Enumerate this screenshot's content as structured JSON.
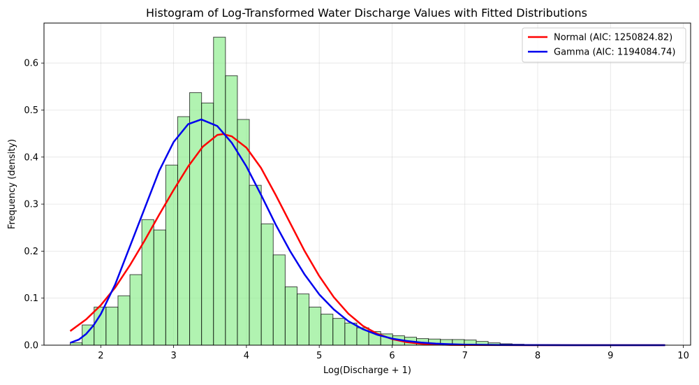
{
  "chart_data": {
    "type": "bar",
    "title": "Histogram of Log-Transformed Water Discharge Values with Fitted Distributions",
    "xlabel": "Log(Discharge + 1)",
    "ylabel": "Frequency (density)",
    "xlim": [
      1.22,
      10.1
    ],
    "ylim": [
      0,
      0.685
    ],
    "xticks": [
      "2",
      "3",
      "4",
      "5",
      "6",
      "7",
      "8",
      "9",
      "10"
    ],
    "yticks": [
      "0.0",
      "0.1",
      "0.2",
      "0.3",
      "0.4",
      "0.5",
      "0.6"
    ],
    "grid": true,
    "legend_position": "top-right",
    "histogram": {
      "bin_start": 1.58,
      "bin_width": 0.164,
      "color": "#90ee90",
      "edge_color": "#000000",
      "values": [
        0.005,
        0.043,
        0.081,
        0.081,
        0.105,
        0.15,
        0.267,
        0.245,
        0.383,
        0.486,
        0.537,
        0.515,
        0.655,
        0.573,
        0.48,
        0.34,
        0.258,
        0.192,
        0.124,
        0.109,
        0.081,
        0.066,
        0.057,
        0.047,
        0.037,
        0.029,
        0.024,
        0.02,
        0.017,
        0.014,
        0.013,
        0.012,
        0.012,
        0.011,
        0.008,
        0.005,
        0.003,
        0.002,
        0.001,
        0.001,
        0.001,
        0.0005,
        0.0005,
        0.0005,
        0.0005,
        0.0003,
        0.0003,
        0.0002,
        0.0002,
        0.0001
      ]
    },
    "series": [
      {
        "name": "Normal (AIC: 1250824.82)",
        "color": "#ff0000",
        "x": [
          1.58,
          1.8,
          2.0,
          2.2,
          2.4,
          2.6,
          2.8,
          3.0,
          3.2,
          3.4,
          3.6,
          3.68,
          3.8,
          4.0,
          4.2,
          4.4,
          4.6,
          4.8,
          5.0,
          5.2,
          5.4,
          5.6,
          5.8,
          6.0,
          6.2,
          6.4,
          6.6,
          6.8,
          7.0,
          7.5,
          8.0,
          8.5,
          9.0,
          9.5,
          9.75
        ],
        "values": [
          0.03,
          0.055,
          0.085,
          0.123,
          0.17,
          0.222,
          0.277,
          0.33,
          0.38,
          0.422,
          0.447,
          0.449,
          0.444,
          0.42,
          0.377,
          0.32,
          0.26,
          0.2,
          0.147,
          0.102,
          0.067,
          0.041,
          0.024,
          0.013,
          0.0065,
          0.003,
          0.0015,
          0.0006,
          0.0003,
          0.0001,
          0.0,
          0.0,
          0.0,
          0.0,
          0.0
        ]
      },
      {
        "name": "Gamma (AIC: 1194084.74)",
        "color": "#0000ee",
        "x": [
          1.58,
          1.7,
          1.8,
          1.9,
          2.0,
          2.2,
          2.4,
          2.6,
          2.8,
          3.0,
          3.2,
          3.38,
          3.6,
          3.8,
          4.0,
          4.2,
          4.4,
          4.6,
          4.8,
          5.0,
          5.2,
          5.4,
          5.6,
          5.8,
          6.0,
          6.2,
          6.4,
          6.6,
          6.8,
          7.0,
          7.5,
          8.0,
          8.5,
          9.0,
          9.5,
          9.75
        ],
        "values": [
          0.005,
          0.012,
          0.024,
          0.042,
          0.066,
          0.13,
          0.21,
          0.29,
          0.37,
          0.432,
          0.47,
          0.48,
          0.466,
          0.43,
          0.38,
          0.32,
          0.257,
          0.2,
          0.15,
          0.108,
          0.076,
          0.051,
          0.034,
          0.022,
          0.014,
          0.009,
          0.0055,
          0.0034,
          0.002,
          0.0012,
          0.0004,
          0.0001,
          0.0,
          0.0,
          0.0,
          0.0
        ]
      }
    ]
  }
}
